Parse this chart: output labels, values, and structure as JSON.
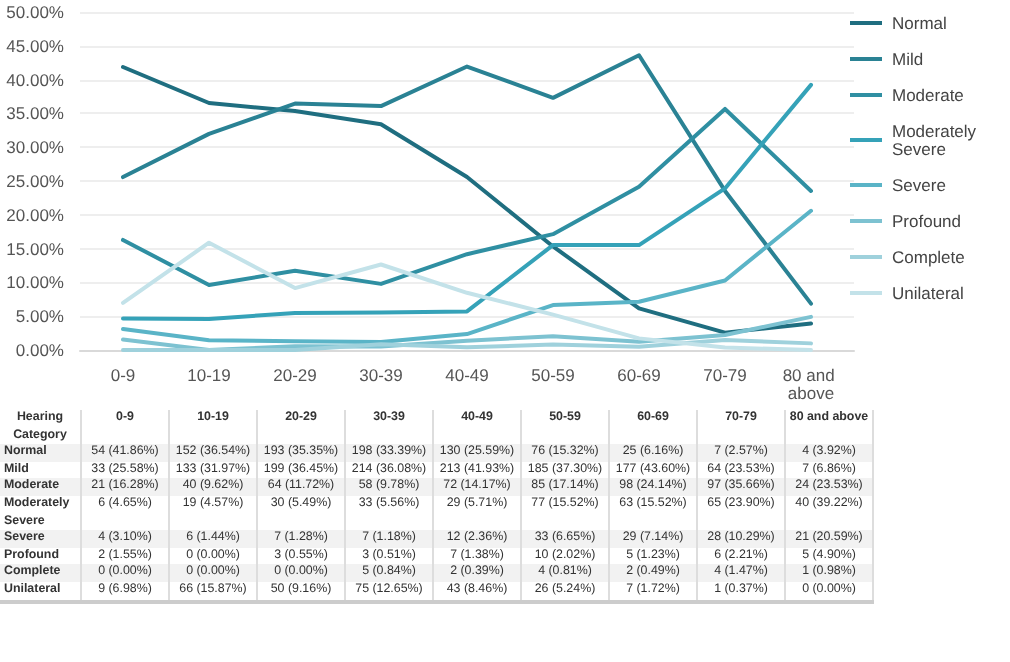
{
  "chart_data": {
    "type": "line",
    "categories": [
      "0-9",
      "10-19",
      "20-29",
      "30-39",
      "40-49",
      "50-59",
      "60-69",
      "70-79",
      "80 and above"
    ],
    "ylim": [
      0,
      50
    ],
    "yticks": [
      {
        "value": 0,
        "label": "0.00%"
      },
      {
        "value": 5,
        "label": "5.00%"
      },
      {
        "value": 10,
        "label": "10.00%"
      },
      {
        "value": 15,
        "label": "15.00%"
      },
      {
        "value": 20,
        "label": "20.00%"
      },
      {
        "value": 25,
        "label": "25.00%"
      },
      {
        "value": 30,
        "label": "30.00%"
      },
      {
        "value": 35,
        "label": "35.00%"
      },
      {
        "value": 40,
        "label": "40.00%"
      },
      {
        "value": 45,
        "label": "45.00%"
      },
      {
        "value": 50,
        "label": "50.00%"
      }
    ],
    "grid": "y",
    "legend": "right",
    "marker": "none",
    "line_style": "solid",
    "annotations": [
      "Hearing Category"
    ],
    "series": [
      {
        "name": "Normal",
        "color": "#1f6e80",
        "values": [
          41.86,
          36.54,
          35.35,
          33.39,
          25.59,
          15.32,
          6.16,
          2.57,
          3.92
        ],
        "value_labels": [
          "54 (41.86%)",
          "152 (36.54%)",
          "193 (35.35%)",
          "198 (33.39%)",
          "130 (25.59%)",
          "76 (15.32%)",
          "25 (6.16%)",
          "7 (2.57%)",
          "4 (3.92%)"
        ]
      },
      {
        "name": "Mild",
        "color": "#2a8294",
        "values": [
          25.58,
          31.97,
          36.45,
          36.08,
          41.93,
          37.3,
          43.6,
          23.53,
          6.86
        ],
        "value_labels": [
          "33 (25.58%)",
          "133 (31.97%)",
          "199 (36.45%)",
          "214 (36.08%)",
          "213 (41.93%)",
          "185 (37.30%)",
          "177 (43.60%)",
          "64 (23.53%)",
          "7 (6.86%)"
        ]
      },
      {
        "name": "Moderate",
        "color": "#2f8fa2",
        "values": [
          16.28,
          9.62,
          11.72,
          9.78,
          14.17,
          17.14,
          24.14,
          35.66,
          23.53
        ],
        "value_labels": [
          "21 (16.28%)",
          "40 (9.62%)",
          "64 (11.72%)",
          "58 (9.78%)",
          "72 (14.17%)",
          "85 (17.14%)",
          "98 (24.14%)",
          "97 (35.66%)",
          "24 (23.53%)"
        ]
      },
      {
        "name": "Moderately Severe",
        "color": "#35a2b8",
        "values": [
          4.65,
          4.57,
          5.49,
          5.56,
          5.71,
          15.52,
          15.52,
          23.9,
          39.22
        ],
        "value_labels": [
          "6 (4.65%)",
          "19 (4.57%)",
          "30 (5.49%)",
          "33 (5.56%)",
          "29 (5.71%)",
          "77 (15.52%)",
          "63 (15.52%)",
          "65 (23.90%)",
          "40 (39.22%)"
        ]
      },
      {
        "name": "Severe",
        "color": "#5ab4c7",
        "values": [
          3.1,
          1.44,
          1.28,
          1.18,
          2.36,
          6.65,
          7.14,
          10.29,
          20.59
        ],
        "value_labels": [
          "4 (3.10%)",
          "6 (1.44%)",
          "7 (1.28%)",
          "7 (1.18%)",
          "12 (2.36%)",
          "33 (6.65%)",
          "29 (7.14%)",
          "28 (10.29%)",
          "21 (20.59%)"
        ]
      },
      {
        "name": "Profound",
        "color": "#7dc2d1",
        "values": [
          1.55,
          0,
          0.55,
          0.51,
          1.38,
          2.02,
          1.23,
          2.21,
          4.9
        ],
        "value_labels": [
          "2 (1.55%)",
          "0 (0.00%)",
          "3 (0.55%)",
          "3 (0.51%)",
          "7 (1.38%)",
          "10 (2.02%)",
          "5 (1.23%)",
          "6 (2.21%)",
          "5 (4.90%)"
        ]
      },
      {
        "name": "Complete",
        "color": "#9fd1dc",
        "values": [
          0,
          0,
          0,
          0.84,
          0.39,
          0.81,
          0.49,
          1.47,
          0.98
        ],
        "value_labels": [
          "0 (0.00%)",
          "0 (0.00%)",
          "0 (0.00%)",
          "5 (0.84%)",
          "2 (0.39%)",
          "4 (0.81%)",
          "2 (0.49%)",
          "4 (1.47%)",
          "1 (0.98%)"
        ]
      },
      {
        "name": "Unilateral",
        "color": "#c3e2e9",
        "values": [
          6.98,
          15.87,
          9.16,
          12.65,
          8.46,
          5.24,
          1.72,
          0.37,
          0
        ],
        "value_labels": [
          "9 (6.98%)",
          "66 (15.87%)",
          "50 (9.16%)",
          "75 (12.65%)",
          "43 (8.46%)",
          "26 (5.24%)",
          "7 (1.72%)",
          "1 (0.37%)",
          "0 (0.00%)"
        ]
      }
    ]
  }
}
